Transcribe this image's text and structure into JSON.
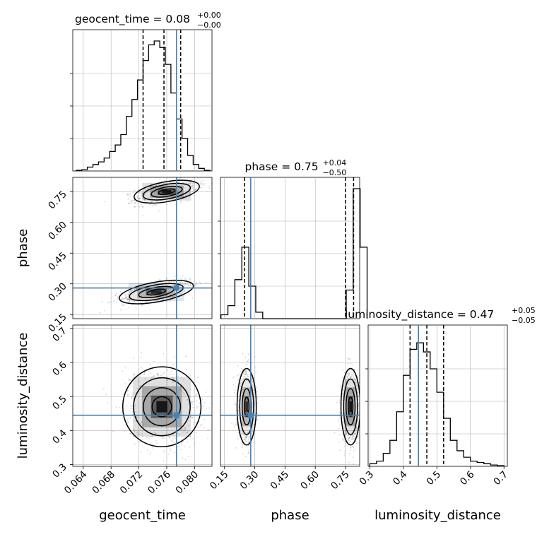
{
  "chart_data": {
    "type": "corner",
    "parameters": [
      "geocent_time",
      "phase",
      "luminosity_distance"
    ],
    "truths": {
      "geocent_time": 0.0774,
      "phase": 0.28,
      "luminosity_distance": 0.445
    },
    "titles": [
      {
        "param": "geocent_time",
        "label": "geocent_time = 0.08",
        "sup": "+0.00",
        "sub": "−0.00",
        "quantiles": [
          0.0726,
          0.0756,
          0.078
        ]
      },
      {
        "param": "phase",
        "label": "phase = 0.75",
        "sup": "+0.04",
        "sub": "−0.50",
        "quantiles": [
          0.25,
          0.75,
          0.79
        ]
      },
      {
        "param": "luminosity_distance",
        "label": "luminosity_distance = 0.47",
        "sup": "+0.05",
        "sub": "−0.05",
        "quantiles": [
          0.42,
          0.47,
          0.52
        ]
      }
    ],
    "axes": {
      "geocent_time": {
        "range": [
          0.0625,
          0.0825
        ],
        "ticks": [
          0.064,
          0.068,
          0.072,
          0.076,
          0.08
        ],
        "tick_labels": [
          "0.064",
          "0.068",
          "0.072",
          "0.076",
          "0.080"
        ]
      },
      "phase": {
        "range": [
          0.13,
          0.82
        ],
        "ticks": [
          0.15,
          0.3,
          0.45,
          0.6,
          0.75
        ],
        "tick_labels": [
          "0.15",
          "0.30",
          "0.45",
          "0.60",
          "0.75"
        ]
      },
      "luminosity_distance": {
        "range": [
          0.295,
          0.71
        ],
        "ticks": [
          0.3,
          0.4,
          0.5,
          0.6,
          0.7
        ],
        "tick_labels": [
          "0.3",
          "0.4",
          "0.5",
          "0.6",
          "0.7"
        ]
      }
    },
    "histograms": {
      "geocent_time": {
        "bin_start": 0.063,
        "bin_width": 0.0008,
        "counts": [
          0.005,
          0.01,
          0.03,
          0.05,
          0.07,
          0.1,
          0.15,
          0.2,
          0.28,
          0.42,
          0.55,
          0.7,
          0.85,
          0.97,
          1.0,
          0.95,
          0.82,
          0.6,
          0.4,
          0.25,
          0.12,
          0.05,
          0.02,
          0.005
        ]
      },
      "phase": {
        "bin_start": 0.1325,
        "bin_width": 0.0345,
        "counts": [
          0.03,
          0.1,
          0.3,
          0.55,
          0.25,
          0.05,
          0.0,
          0.0,
          0.0,
          0.0,
          0.0,
          0.0,
          0.0,
          0.0,
          0.0,
          0.0,
          0.0,
          0.0,
          0.22,
          1.0,
          0.55
        ]
      },
      "luminosity_distance": {
        "bin_start": 0.3,
        "bin_width": 0.02,
        "counts": [
          0.02,
          0.04,
          0.1,
          0.2,
          0.42,
          0.7,
          0.9,
          0.95,
          0.88,
          0.75,
          0.57,
          0.37,
          0.2,
          0.12,
          0.07,
          0.04,
          0.03,
          0.02,
          0.01,
          0.005
        ]
      }
    },
    "pairs": [
      {
        "x": "geocent_time",
        "y": "phase",
        "modes": [
          {
            "cx": 0.076,
            "cy": 0.75,
            "sx": 0.0022,
            "sy": 0.027,
            "rho": 0.55,
            "weight": 1.0
          },
          {
            "cx": 0.0745,
            "cy": 0.26,
            "sx": 0.0025,
            "sy": 0.028,
            "rho": 0.6,
            "weight": 0.85
          }
        ]
      },
      {
        "x": "geocent_time",
        "y": "luminosity_distance",
        "modes": [
          {
            "cx": 0.0753,
            "cy": 0.47,
            "sx": 0.0026,
            "sy": 0.055,
            "rho": -0.15,
            "weight": 1.0
          }
        ]
      },
      {
        "x": "phase",
        "y": "luminosity_distance",
        "modes": [
          {
            "cx": 0.26,
            "cy": 0.47,
            "sx": 0.022,
            "sy": 0.052,
            "rho": 0.0,
            "weight": 0.8
          },
          {
            "cx": 0.775,
            "cy": 0.47,
            "sx": 0.022,
            "sy": 0.052,
            "rho": 0.0,
            "weight": 1.0
          }
        ]
      }
    ],
    "colors": {
      "truth": "#4682b4",
      "hist": "#000000",
      "grid": "#b0b0b0",
      "scatter": "#555555"
    }
  }
}
